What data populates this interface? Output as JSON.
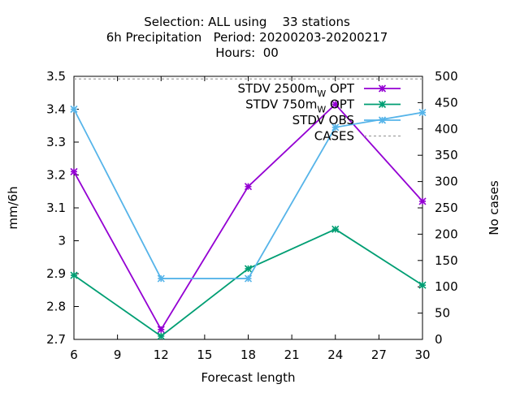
{
  "chart_data": {
    "type": "line",
    "title_lines": [
      "Selection: ALL using    33 stations",
      "6h Precipitation   Period: 20200203-20200217",
      "Hours:  00"
    ],
    "xlabel": "Forecast length",
    "ylabel": "mm/6h",
    "y2label": "No cases",
    "xlim": [
      6,
      30
    ],
    "ylim": [
      2.7,
      3.5
    ],
    "y2lim": [
      0,
      500
    ],
    "x_ticks": [
      6,
      9,
      12,
      15,
      18,
      21,
      24,
      27,
      30
    ],
    "y_ticks": [
      "2.7",
      "2.8",
      "2.9",
      "3",
      "3.1",
      "3.2",
      "3.3",
      "3.4",
      "3.5"
    ],
    "y2_ticks": [
      0,
      50,
      100,
      150,
      200,
      250,
      300,
      350,
      400,
      450,
      500
    ],
    "grid": false,
    "legend_position": "top-right",
    "series": [
      {
        "name": "STDV 2500m_W OPT",
        "legend_main": "STDV 2500m",
        "legend_sub": "W",
        "legend_tail": " OPT",
        "color": "#9400d3",
        "axis": "y",
        "marker": "star",
        "x": [
          6,
          12,
          18,
          24,
          30
        ],
        "values": [
          3.21,
          2.73,
          3.165,
          3.415,
          3.12
        ]
      },
      {
        "name": "STDV 750m_W OPT",
        "legend_main": "STDV 750m",
        "legend_sub": "W",
        "legend_tail": " OPT",
        "color": "#009e73",
        "axis": "y",
        "marker": "star",
        "x": [
          6,
          12,
          18,
          24,
          30
        ],
        "values": [
          2.895,
          2.71,
          2.915,
          3.035,
          2.865
        ]
      },
      {
        "name": "STDV OBS",
        "legend_main": "STDV OBS",
        "legend_sub": "",
        "legend_tail": "",
        "color": "#56b4e9",
        "axis": "y",
        "marker": "star",
        "x": [
          6,
          12,
          18,
          24,
          30
        ],
        "values": [
          3.4,
          2.885,
          2.885,
          3.345,
          3.39
        ]
      },
      {
        "name": "CASES",
        "legend_main": "CASES",
        "legend_sub": "",
        "legend_tail": "",
        "color": "#a0a0a0",
        "axis": "y2",
        "marker": "none",
        "dashed": true,
        "x": [
          6,
          12,
          18,
          24,
          30
        ],
        "values": [
          495,
          495,
          495,
          495,
          495
        ]
      }
    ]
  }
}
